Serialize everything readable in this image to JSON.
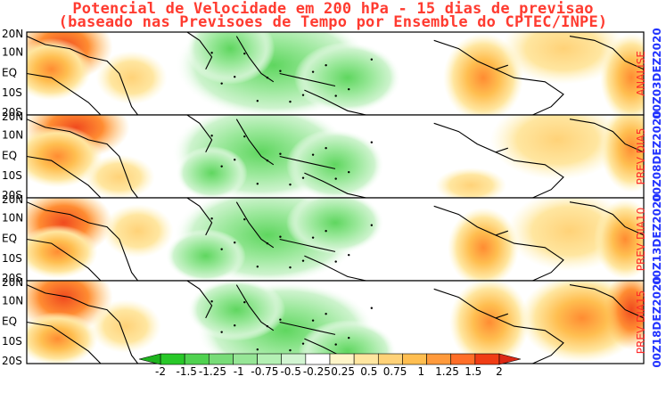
{
  "title": {
    "line1": "Potencial de Velocidade em 200 hPa - 15 dias de previsao",
    "line2": "(baseado nas Previsoes de Tempo por Ensemble do CPTEC/INPE)"
  },
  "lat_labels": [
    "20N",
    "10N",
    "EQ",
    "10S",
    "20S"
  ],
  "panels": [
    {
      "label": "ANALISE",
      "date": "00Z03DEZ2020"
    },
    {
      "label": "PREV DIA5",
      "date": "00Z08DEZ2020"
    },
    {
      "label": "PREV DIA10",
      "date": "00Z13DEZ2020"
    },
    {
      "label": "PREV DIA15",
      "date": "00Z18DEZ2020"
    }
  ],
  "colorbar": {
    "labels": [
      "-2",
      "-1.5",
      "-1.25",
      "-1",
      "-0.75",
      "-0.5",
      "-0.25",
      "0.25",
      "0.5",
      "0.75",
      "1",
      "1.25",
      "1.5",
      "2"
    ],
    "colors": [
      "#28c828",
      "#50d250",
      "#78dc78",
      "#96e696",
      "#b4f0b4",
      "#d2f5d2",
      "#ffffff",
      "#fff5c8",
      "#ffe6a0",
      "#ffd278",
      "#ffbe50",
      "#ff9a3c",
      "#ff6e28",
      "#f03c14"
    ]
  }
}
